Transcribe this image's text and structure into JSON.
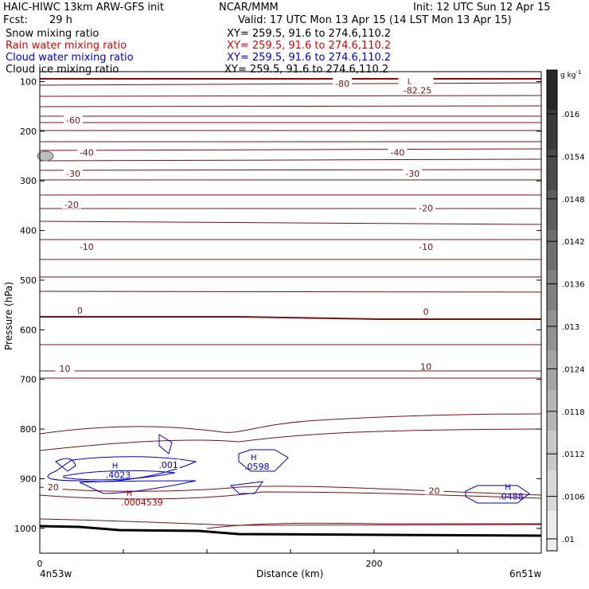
{
  "header": {
    "title": "HAIC-HIWC 13km ARW-GFS init",
    "org": "NCAR/MMM",
    "init": "Init: 12 UTC Sun 12 Apr 15",
    "fcst_label": "Fcst:",
    "fcst_value": "29 h",
    "valid": "Valid: 17 UTC Mon 13 Apr 15 (14 LST Mon 13 Apr 15)"
  },
  "fields": [
    {
      "name": "Snow mixing ratio",
      "xy": "XY= 259.5, 91.6 to 274.6,110.2",
      "color": "#000000"
    },
    {
      "name": "Rain water mixing ratio",
      "xy": "XY= 259.5, 91.6 to 274.6,110.2",
      "color": "#e00000"
    },
    {
      "name": "Cloud water mixing ratio",
      "xy": "XY= 259.5, 91.6 to 274.6,110.2",
      "color": "#0000cc"
    },
    {
      "name": "Cloud ice mixing ratio",
      "xy": "XY= 259.5, 91.6 to 274.6,110.2",
      "color": "#000000"
    }
  ],
  "chart_data": {
    "type": "contour cross-section",
    "xlabel": "Distance (km)",
    "ylabel": "Pressure (hPa)",
    "x_range": [
      0,
      300
    ],
    "y_range": [
      1050,
      80
    ],
    "x_ticks": [
      0,
      200
    ],
    "y_ticks": [
      100,
      200,
      300,
      400,
      500,
      600,
      700,
      800,
      900,
      1000
    ],
    "x_end_labels": {
      "left": "4n53w",
      "right": "6n51w"
    },
    "temperature_contours": {
      "color": "#7a1010",
      "labels": [
        {
          "text": "-80",
          "x": 181,
          "p": 104
        },
        {
          "text": "-60",
          "x": 20,
          "p": 178
        },
        {
          "text": "-40",
          "x": 28,
          "p": 243
        },
        {
          "text": "-40",
          "x": 214,
          "p": 243
        },
        {
          "text": "-30",
          "x": 20,
          "p": 285
        },
        {
          "text": "-30",
          "x": 223,
          "p": 285
        },
        {
          "text": "-20",
          "x": 19,
          "p": 348
        },
        {
          "text": "-20",
          "x": 231,
          "p": 355
        },
        {
          "text": "-10",
          "x": 28,
          "p": 433
        },
        {
          "text": "-10",
          "x": 231,
          "p": 433
        },
        {
          "text": "0",
          "x": 24,
          "p": 561
        },
        {
          "text": "0",
          "x": 231,
          "p": 563
        },
        {
          "text": "10",
          "x": 15,
          "p": 678
        },
        {
          "text": "10",
          "x": 231,
          "p": 674
        },
        {
          "text": "20",
          "x": 8,
          "p": 917
        },
        {
          "text": "20",
          "x": 236,
          "p": 924
        }
      ],
      "extrema": [
        {
          "type": "L",
          "value": "-82.25",
          "x": 225,
          "p": 95
        }
      ]
    },
    "cloud_water_contours": {
      "color": "#0000cc",
      "labels": [
        {
          "text": ".001",
          "x": 77,
          "p": 872
        }
      ],
      "maxima": [
        {
          "type": "H",
          "value": ".4023",
          "x": 45,
          "p": 886
        },
        {
          "type": "H",
          "value": ".0598",
          "x": 128,
          "p": 869
        },
        {
          "type": "H",
          "value": ".0488",
          "x": 280,
          "p": 929
        }
      ]
    },
    "rain_water_maxima": [
      {
        "type": "H",
        "value": ".0004539",
        "x": 55,
        "p": 944
      }
    ],
    "colorbar": {
      "unit": "g kg",
      "unit_exp": "-1",
      "ticks": [
        ".016",
        ".0154",
        ".0148",
        ".0142",
        ".0136",
        ".013",
        ".0124",
        ".0118",
        ".0112",
        ".0106",
        ".01"
      ]
    }
  }
}
